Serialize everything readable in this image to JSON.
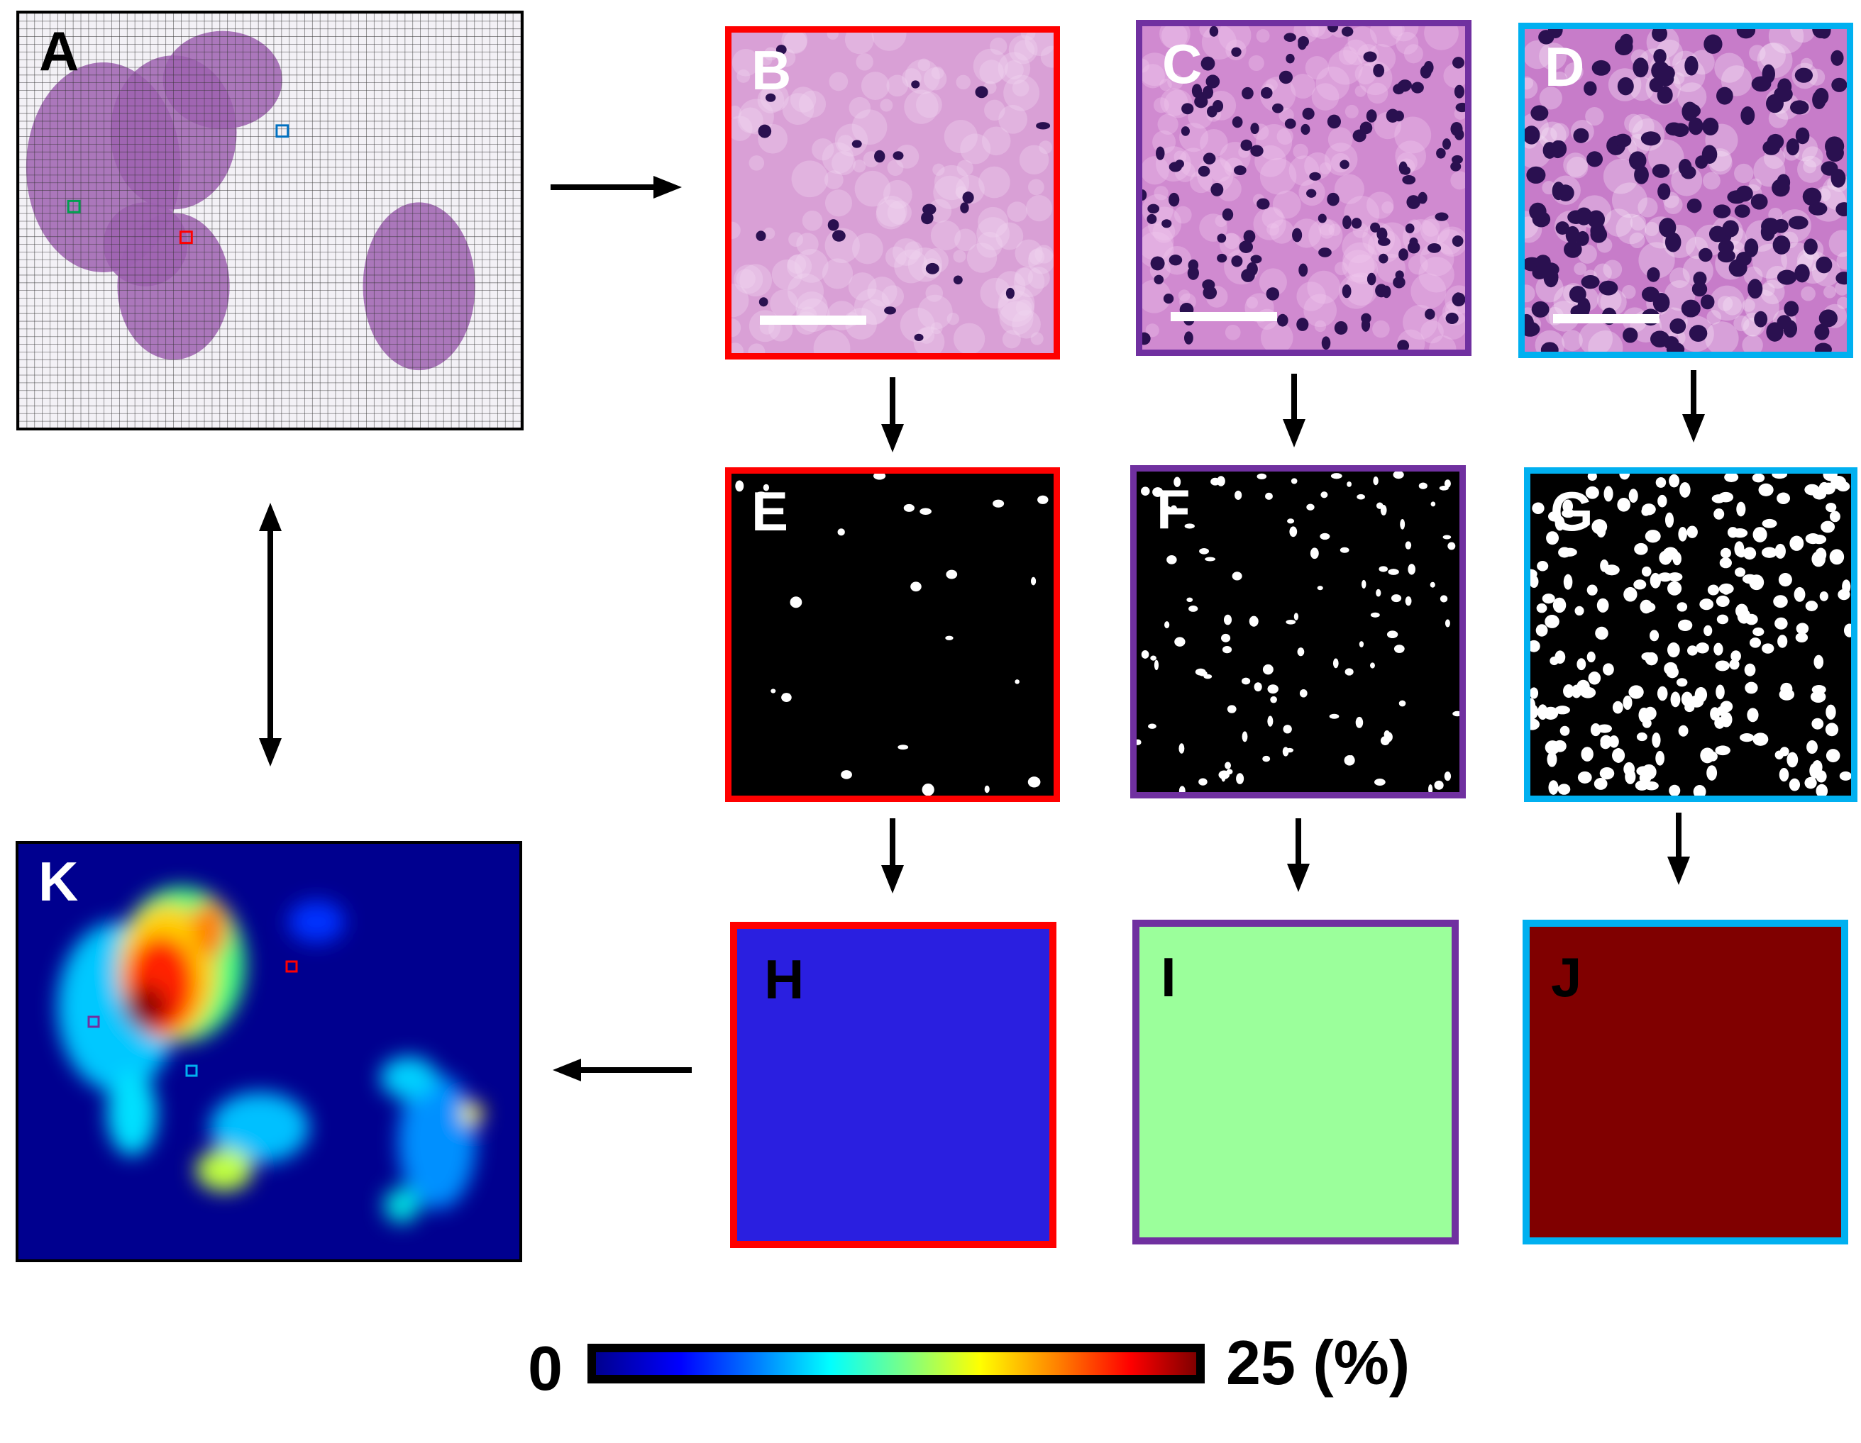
{
  "panels": {
    "A": {
      "label": "A"
    },
    "B": {
      "label": "B"
    },
    "C": {
      "label": "C"
    },
    "D": {
      "label": "D"
    },
    "E": {
      "label": "E"
    },
    "F": {
      "label": "F"
    },
    "G": {
      "label": "G"
    },
    "H": {
      "label": "H"
    },
    "I": {
      "label": "I"
    },
    "J": {
      "label": "J"
    },
    "K": {
      "label": "K"
    }
  },
  "colors": {
    "red": "#ff0000",
    "purple": "#7030a0",
    "cyan": "#00b0f0",
    "H_fill": "#2a1fe0",
    "I_fill": "#9bff9b",
    "J_fill": "#800000"
  },
  "colorbar": {
    "min_label": "0",
    "max_label": "25 (%)",
    "colormap": "jet",
    "range": [
      0,
      25
    ],
    "unit": "%"
  }
}
